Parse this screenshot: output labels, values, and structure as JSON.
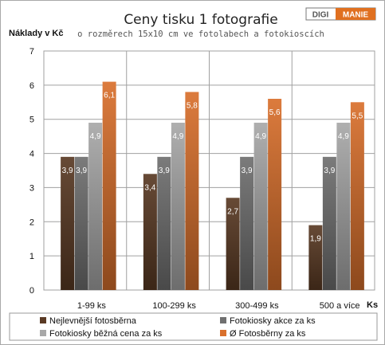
{
  "chart_data": {
    "type": "bar",
    "title": "Ceny tisku  1 fotografie",
    "subtitle": "o rozměrech 15x10 cm ve fotolabech a fotokioscích",
    "ylabel": "Náklady v Kč",
    "xlabel": "Ks",
    "ylim": [
      0,
      7
    ],
    "yticks": [
      0,
      1,
      2,
      3,
      4,
      5,
      6,
      7
    ],
    "grid": true,
    "legend_position": "bottom",
    "categories": [
      "1-99 ks",
      "100-299 ks",
      "300-499 ks",
      "500 a více"
    ],
    "series": [
      {
        "name": "Nejlevnější fotosběrna",
        "values": [
          3.9,
          3.4,
          2.7,
          1.9
        ],
        "labels": [
          "3,9",
          "3,4",
          "2,7",
          "1,9"
        ],
        "color": "#5a3a24"
      },
      {
        "name": "Fotokiosky akce za ks",
        "values": [
          3.9,
          3.9,
          3.9,
          3.9
        ],
        "labels": [
          "3,9",
          "3,9",
          "3,9",
          "3,9"
        ],
        "color": "#707070"
      },
      {
        "name": "Fotokiosky běžná cena za ks",
        "values": [
          4.9,
          4.9,
          4.9,
          4.9
        ],
        "labels": [
          "4,9",
          "4,9",
          "4,9",
          "4,9"
        ],
        "color": "#a8a8a8"
      },
      {
        "name": "Ø Fotosběrny za ks",
        "values": [
          6.1,
          5.8,
          5.6,
          5.5
        ],
        "labels": [
          "6,1",
          "5,8",
          "5,6",
          "5,5"
        ],
        "color": "#d9702c"
      }
    ]
  },
  "logo": {
    "left_text": "DIGI",
    "right_text": "MANIE",
    "left_color": "#555555",
    "right_color": "#e07020"
  }
}
